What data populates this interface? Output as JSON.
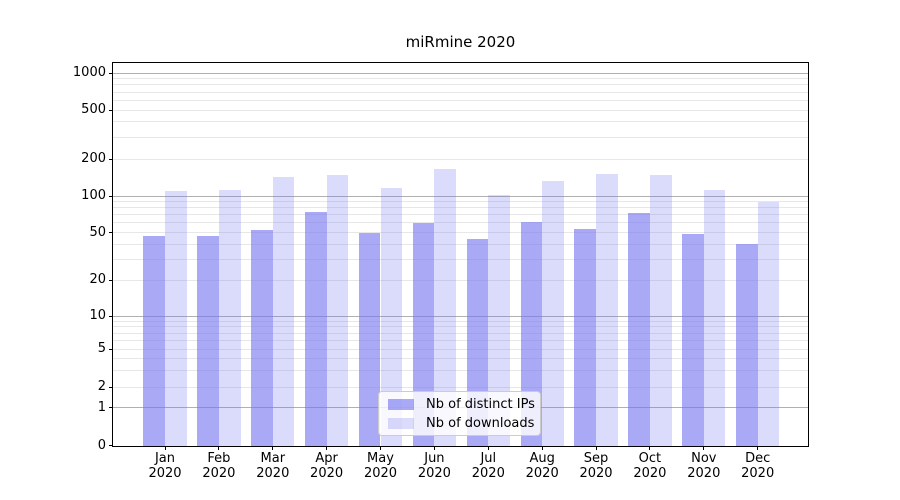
{
  "figure": {
    "title": "miRmine 2020"
  },
  "chart_data": {
    "type": "bar",
    "title": "miRmine 2020",
    "x_categories": [
      "Jan",
      "Feb",
      "Mar",
      "Apr",
      "May",
      "Jun",
      "Jul",
      "Aug",
      "Sep",
      "Oct",
      "Nov",
      "Dec"
    ],
    "x_year": "2020",
    "series": [
      {
        "name": "Nb of distinct IPs",
        "values": [
          47,
          47,
          53,
          74,
          50,
          60,
          44,
          61,
          54,
          73,
          49,
          40
        ]
      },
      {
        "name": "Nb of downloads",
        "values": [
          110,
          112,
          144,
          150,
          117,
          168,
          102,
          133,
          152,
          150,
          112,
          89
        ]
      }
    ],
    "yscale": "symlog",
    "yticks": [
      0,
      1,
      2,
      5,
      10,
      20,
      50,
      100,
      200,
      500,
      1000
    ],
    "ytick_labels": [
      "0",
      "1",
      "2",
      "5",
      "10",
      "20",
      "50",
      "100",
      "200",
      "500",
      "1000"
    ],
    "ylim": [
      0,
      1200
    ],
    "grid": true,
    "legend_position": "lower center"
  },
  "colors": {
    "bar_ips": "rgba(116,116,240,0.62)",
    "bar_downloads": "rgba(116,116,240,0.26)",
    "grid_major": "#b0b0b0",
    "grid_minor": "#e7e7e7",
    "axis": "#000000",
    "legend_bg": "rgba(255,255,255,0.8)",
    "legend_border": "#cccccc",
    "background": "#ffffff"
  }
}
